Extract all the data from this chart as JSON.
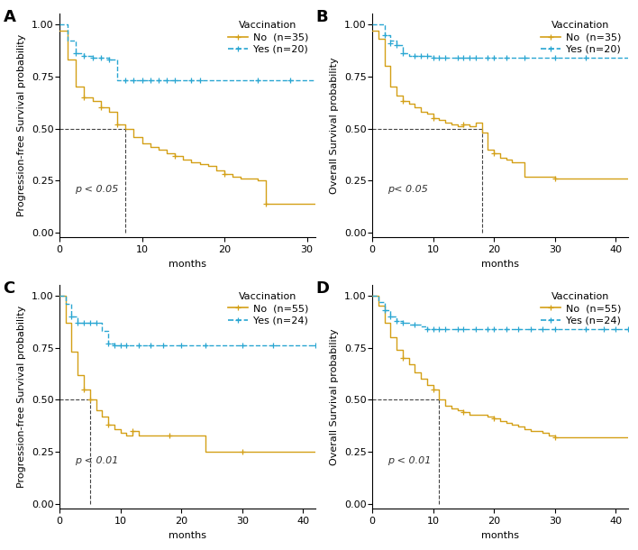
{
  "panels": [
    {
      "label": "A",
      "ylabel": "Progression-free Survival probability",
      "xlabel": "months",
      "xlim": [
        0,
        31
      ],
      "ylim": [
        -0.02,
        1.05
      ],
      "xticks": [
        0,
        10,
        20,
        30
      ],
      "yticks": [
        0.0,
        0.25,
        0.5,
        0.75,
        1.0
      ],
      "median_line_x": 8,
      "pvalue": "p < 0.05",
      "legend_no": "No  (n=35)",
      "legend_yes": "Yes (n=20)",
      "no_color": "#D4A017",
      "yes_color": "#29A6D2",
      "no_steps": [
        [
          0,
          0.97
        ],
        [
          1,
          0.83
        ],
        [
          2,
          0.7
        ],
        [
          3,
          0.65
        ],
        [
          4,
          0.63
        ],
        [
          5,
          0.6
        ],
        [
          6,
          0.58
        ],
        [
          7,
          0.52
        ],
        [
          8,
          0.5
        ],
        [
          9,
          0.46
        ],
        [
          10,
          0.43
        ],
        [
          11,
          0.41
        ],
        [
          12,
          0.4
        ],
        [
          13,
          0.38
        ],
        [
          14,
          0.37
        ],
        [
          15,
          0.35
        ],
        [
          16,
          0.34
        ],
        [
          17,
          0.33
        ],
        [
          18,
          0.32
        ],
        [
          19,
          0.3
        ],
        [
          20,
          0.28
        ],
        [
          21,
          0.27
        ],
        [
          22,
          0.26
        ],
        [
          24,
          0.25
        ],
        [
          25,
          0.14
        ],
        [
          31,
          0.14
        ]
      ],
      "no_censors": [
        [
          3,
          0.65
        ],
        [
          5,
          0.6
        ],
        [
          7,
          0.52
        ],
        [
          14,
          0.37
        ],
        [
          20,
          0.28
        ],
        [
          25,
          0.14
        ]
      ],
      "yes_steps": [
        [
          0,
          1.0
        ],
        [
          1,
          0.92
        ],
        [
          2,
          0.86
        ],
        [
          3,
          0.85
        ],
        [
          4,
          0.84
        ],
        [
          5,
          0.84
        ],
        [
          6,
          0.83
        ],
        [
          7,
          0.73
        ],
        [
          31,
          0.73
        ]
      ],
      "yes_censors": [
        [
          2,
          0.86
        ],
        [
          3,
          0.85
        ],
        [
          4,
          0.84
        ],
        [
          5,
          0.84
        ],
        [
          6,
          0.83
        ],
        [
          8,
          0.73
        ],
        [
          9,
          0.73
        ],
        [
          10,
          0.73
        ],
        [
          11,
          0.73
        ],
        [
          12,
          0.73
        ],
        [
          13,
          0.73
        ],
        [
          14,
          0.73
        ],
        [
          16,
          0.73
        ],
        [
          17,
          0.73
        ],
        [
          24,
          0.73
        ],
        [
          28,
          0.73
        ]
      ]
    },
    {
      "label": "B",
      "ylabel": "Overall Survival probability",
      "xlabel": "months",
      "xlim": [
        0,
        42
      ],
      "ylim": [
        -0.02,
        1.05
      ],
      "xticks": [
        0,
        10,
        20,
        30,
        40
      ],
      "yticks": [
        0.0,
        0.25,
        0.5,
        0.75,
        1.0
      ],
      "median_line_x": 18,
      "pvalue": "p< 0.05",
      "legend_no": "No  (n=35)",
      "legend_yes": "Yes (n=20)",
      "no_color": "#D4A017",
      "yes_color": "#29A6D2",
      "no_steps": [
        [
          0,
          0.97
        ],
        [
          1,
          0.93
        ],
        [
          2,
          0.8
        ],
        [
          3,
          0.7
        ],
        [
          4,
          0.66
        ],
        [
          5,
          0.63
        ],
        [
          6,
          0.62
        ],
        [
          7,
          0.6
        ],
        [
          8,
          0.58
        ],
        [
          9,
          0.57
        ],
        [
          10,
          0.55
        ],
        [
          11,
          0.54
        ],
        [
          12,
          0.53
        ],
        [
          13,
          0.52
        ],
        [
          14,
          0.51
        ],
        [
          15,
          0.52
        ],
        [
          16,
          0.51
        ],
        [
          17,
          0.53
        ],
        [
          18,
          0.48
        ],
        [
          19,
          0.4
        ],
        [
          20,
          0.38
        ],
        [
          21,
          0.36
        ],
        [
          22,
          0.35
        ],
        [
          23,
          0.34
        ],
        [
          24,
          0.34
        ],
        [
          25,
          0.27
        ],
        [
          30,
          0.26
        ],
        [
          42,
          0.26
        ]
      ],
      "no_censors": [
        [
          5,
          0.63
        ],
        [
          10,
          0.55
        ],
        [
          15,
          0.52
        ],
        [
          20,
          0.38
        ],
        [
          30,
          0.26
        ]
      ],
      "yes_steps": [
        [
          0,
          1.0
        ],
        [
          1,
          1.0
        ],
        [
          2,
          0.95
        ],
        [
          3,
          0.92
        ],
        [
          4,
          0.9
        ],
        [
          5,
          0.86
        ],
        [
          6,
          0.85
        ],
        [
          10,
          0.84
        ],
        [
          42,
          0.84
        ]
      ],
      "yes_censors": [
        [
          2,
          0.95
        ],
        [
          3,
          0.91
        ],
        [
          4,
          0.9
        ],
        [
          5,
          0.86
        ],
        [
          7,
          0.85
        ],
        [
          8,
          0.85
        ],
        [
          9,
          0.85
        ],
        [
          10,
          0.84
        ],
        [
          11,
          0.84
        ],
        [
          12,
          0.84
        ],
        [
          14,
          0.84
        ],
        [
          15,
          0.84
        ],
        [
          16,
          0.84
        ],
        [
          17,
          0.84
        ],
        [
          19,
          0.84
        ],
        [
          20,
          0.84
        ],
        [
          22,
          0.84
        ],
        [
          25,
          0.84
        ],
        [
          30,
          0.84
        ],
        [
          35,
          0.84
        ]
      ]
    },
    {
      "label": "C",
      "ylabel": "Progression-free Survival probability",
      "xlabel": "months",
      "xlim": [
        0,
        42
      ],
      "ylim": [
        -0.02,
        1.05
      ],
      "xticks": [
        0,
        10,
        20,
        30,
        40
      ],
      "yticks": [
        0.0,
        0.25,
        0.5,
        0.75,
        1.0
      ],
      "median_line_x": 5,
      "pvalue": "p < 0.01",
      "legend_no": "No  (n=55)",
      "legend_yes": "Yes (n=24)",
      "no_color": "#D4A017",
      "yes_color": "#29A6D2",
      "no_steps": [
        [
          0,
          1.0
        ],
        [
          1,
          0.87
        ],
        [
          2,
          0.73
        ],
        [
          3,
          0.62
        ],
        [
          4,
          0.55
        ],
        [
          5,
          0.5
        ],
        [
          6,
          0.45
        ],
        [
          7,
          0.42
        ],
        [
          8,
          0.38
        ],
        [
          9,
          0.36
        ],
        [
          10,
          0.34
        ],
        [
          11,
          0.33
        ],
        [
          12,
          0.35
        ],
        [
          13,
          0.33
        ],
        [
          14,
          0.33
        ],
        [
          15,
          0.33
        ],
        [
          16,
          0.33
        ],
        [
          17,
          0.33
        ],
        [
          18,
          0.33
        ],
        [
          19,
          0.33
        ],
        [
          20,
          0.33
        ],
        [
          21,
          0.33
        ],
        [
          22,
          0.33
        ],
        [
          24,
          0.25
        ],
        [
          42,
          0.25
        ]
      ],
      "no_censors": [
        [
          4,
          0.55
        ],
        [
          5,
          0.5
        ],
        [
          8,
          0.38
        ],
        [
          12,
          0.35
        ],
        [
          18,
          0.33
        ],
        [
          30,
          0.25
        ]
      ],
      "yes_steps": [
        [
          0,
          1.0
        ],
        [
          1,
          0.96
        ],
        [
          2,
          0.9
        ],
        [
          3,
          0.87
        ],
        [
          4,
          0.87
        ],
        [
          5,
          0.87
        ],
        [
          6,
          0.87
        ],
        [
          7,
          0.83
        ],
        [
          8,
          0.77
        ],
        [
          9,
          0.76
        ],
        [
          42,
          0.76
        ]
      ],
      "yes_censors": [
        [
          2,
          0.9
        ],
        [
          3,
          0.87
        ],
        [
          4,
          0.87
        ],
        [
          5,
          0.87
        ],
        [
          6,
          0.87
        ],
        [
          8,
          0.77
        ],
        [
          9,
          0.76
        ],
        [
          10,
          0.76
        ],
        [
          11,
          0.76
        ],
        [
          13,
          0.76
        ],
        [
          15,
          0.76
        ],
        [
          17,
          0.76
        ],
        [
          20,
          0.76
        ],
        [
          24,
          0.76
        ],
        [
          30,
          0.76
        ],
        [
          35,
          0.76
        ],
        [
          42,
          0.76
        ]
      ]
    },
    {
      "label": "D",
      "ylabel": "Overall Survival probability",
      "xlabel": "months",
      "xlim": [
        0,
        42
      ],
      "ylim": [
        -0.02,
        1.05
      ],
      "xticks": [
        0,
        10,
        20,
        30,
        40
      ],
      "yticks": [
        0.0,
        0.25,
        0.5,
        0.75,
        1.0
      ],
      "median_line_x": 11,
      "pvalue": "p < 0.01",
      "legend_no": "No  (n=55)",
      "legend_yes": "Yes (n=24)",
      "no_color": "#D4A017",
      "yes_color": "#29A6D2",
      "no_steps": [
        [
          0,
          1.0
        ],
        [
          1,
          0.95
        ],
        [
          2,
          0.87
        ],
        [
          3,
          0.8
        ],
        [
          4,
          0.74
        ],
        [
          5,
          0.7
        ],
        [
          6,
          0.67
        ],
        [
          7,
          0.63
        ],
        [
          8,
          0.6
        ],
        [
          9,
          0.57
        ],
        [
          10,
          0.55
        ],
        [
          11,
          0.5
        ],
        [
          12,
          0.47
        ],
        [
          13,
          0.46
        ],
        [
          14,
          0.45
        ],
        [
          15,
          0.44
        ],
        [
          16,
          0.43
        ],
        [
          17,
          0.43
        ],
        [
          18,
          0.43
        ],
        [
          19,
          0.42
        ],
        [
          20,
          0.41
        ],
        [
          21,
          0.4
        ],
        [
          22,
          0.39
        ],
        [
          23,
          0.38
        ],
        [
          24,
          0.37
        ],
        [
          25,
          0.36
        ],
        [
          26,
          0.35
        ],
        [
          28,
          0.34
        ],
        [
          29,
          0.33
        ],
        [
          30,
          0.32
        ],
        [
          42,
          0.32
        ]
      ],
      "no_censors": [
        [
          5,
          0.7
        ],
        [
          10,
          0.55
        ],
        [
          15,
          0.44
        ],
        [
          20,
          0.41
        ],
        [
          30,
          0.32
        ]
      ],
      "yes_steps": [
        [
          0,
          1.0
        ],
        [
          1,
          0.97
        ],
        [
          2,
          0.93
        ],
        [
          3,
          0.9
        ],
        [
          4,
          0.88
        ],
        [
          5,
          0.87
        ],
        [
          6,
          0.86
        ],
        [
          7,
          0.86
        ],
        [
          8,
          0.85
        ],
        [
          9,
          0.84
        ],
        [
          42,
          0.84
        ]
      ],
      "yes_censors": [
        [
          2,
          0.93
        ],
        [
          3,
          0.9
        ],
        [
          4,
          0.88
        ],
        [
          5,
          0.87
        ],
        [
          7,
          0.86
        ],
        [
          9,
          0.84
        ],
        [
          10,
          0.84
        ],
        [
          11,
          0.84
        ],
        [
          12,
          0.84
        ],
        [
          14,
          0.84
        ],
        [
          15,
          0.84
        ],
        [
          17,
          0.84
        ],
        [
          19,
          0.84
        ],
        [
          20,
          0.84
        ],
        [
          22,
          0.84
        ],
        [
          24,
          0.84
        ],
        [
          26,
          0.84
        ],
        [
          28,
          0.84
        ],
        [
          30,
          0.84
        ],
        [
          35,
          0.84
        ],
        [
          38,
          0.84
        ],
        [
          40,
          0.84
        ],
        [
          42,
          0.84
        ]
      ]
    }
  ],
  "background_color": "#ffffff",
  "no_color": "#D4A017",
  "yes_color": "#29A6D2",
  "label_fontsize": 8,
  "tick_fontsize": 8,
  "legend_fontsize": 8
}
